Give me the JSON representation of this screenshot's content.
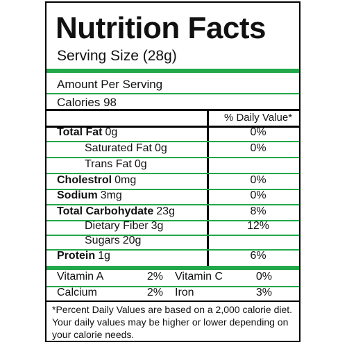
{
  "header": {
    "title": "Nutrition Facts",
    "serving_size": "Serving Size (28g)"
  },
  "amount_per_serving": "Amount Per Serving",
  "calories": "Calories 98",
  "table": {
    "header": "% Daily Value*",
    "rows": [
      [
        "Total Fat",
        "0g",
        "0%"
      ],
      [
        "Saturated Fat",
        "0g",
        "0%"
      ],
      [
        "Trans Fat",
        "0g"
      ],
      [
        "Cholestrol",
        "0mg",
        "0%"
      ],
      [
        "Sodium",
        "3mg",
        "0%"
      ],
      [
        "Total Carbohydate",
        "23g",
        "8%"
      ],
      [
        "Dietary Fiber",
        "3g",
        "12%"
      ],
      [
        "Sugars",
        "20g"
      ],
      [
        "Protein",
        "1g",
        "6%"
      ]
    ]
  },
  "vitamins": [
    [
      "Vitamin A",
      "2%",
      "Vitamin C",
      "0%"
    ],
    [
      "Calcium",
      "2%",
      "Iron",
      "3%"
    ]
  ],
  "footnote": [
    "*Percent Daily Values are based on a 2,000 calorie diet.",
    "Your daily values may be higher or lower depending on",
    "your calorie needs."
  ]
}
